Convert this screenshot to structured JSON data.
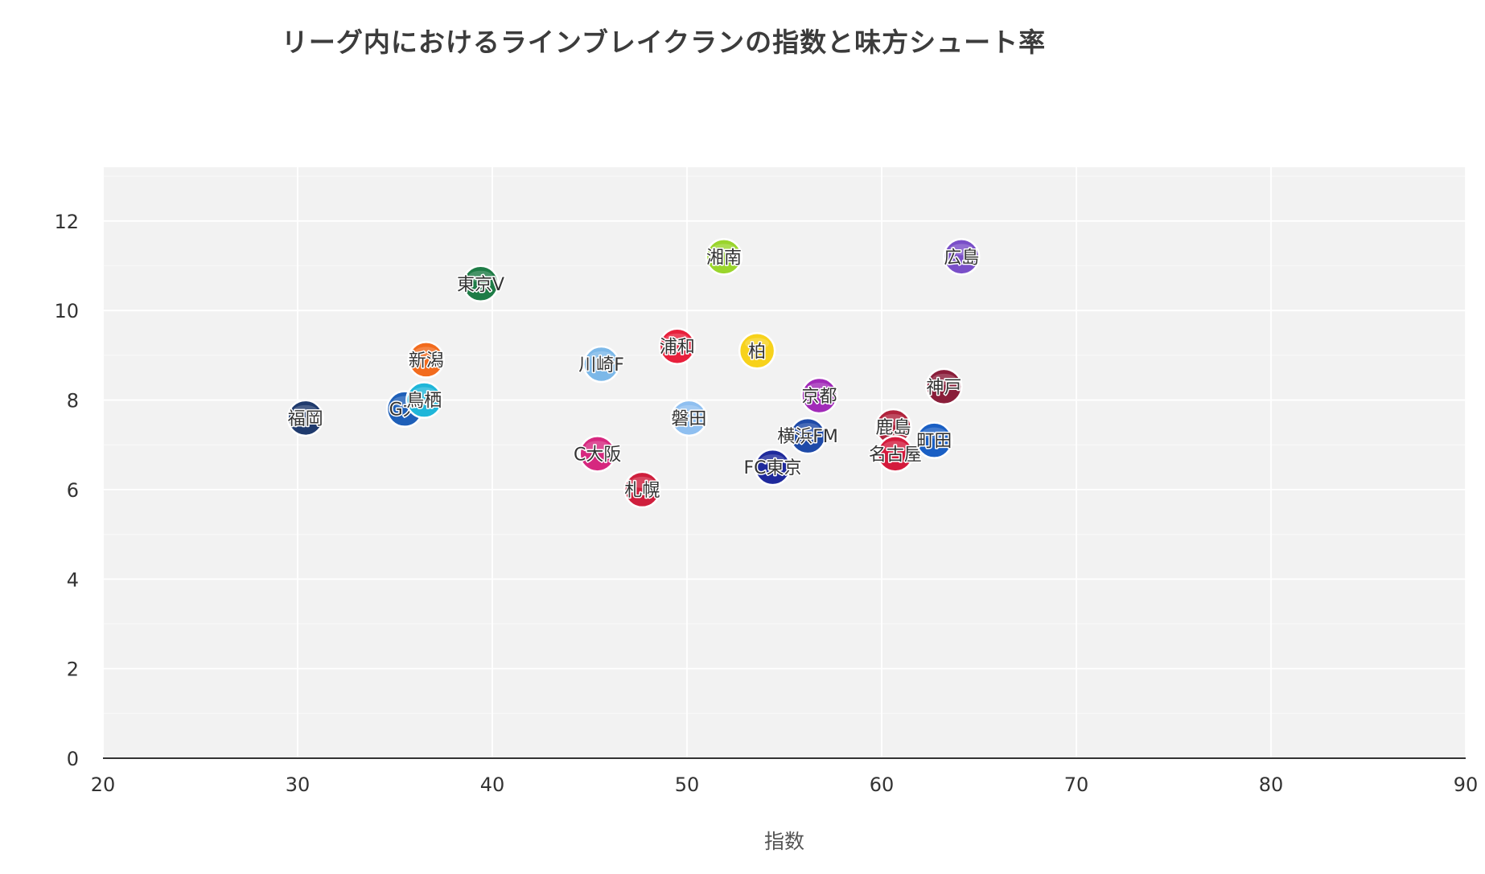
{
  "chart_data": {
    "type": "scatter",
    "title": "リーグ内におけるラインブレイクランの指数と味方シュート率",
    "xlabel": "指数",
    "ylabel": "",
    "xlim": [
      20,
      90
    ],
    "ylim": [
      0,
      13.2
    ],
    "x_ticks": [
      20,
      30,
      40,
      50,
      60,
      70,
      80,
      90
    ],
    "y_ticks": [
      0,
      2,
      4,
      6,
      8,
      10,
      12
    ],
    "grid": true,
    "legend": "none",
    "points": [
      {
        "label": "福岡",
        "x": 30.4,
        "y": 7.6,
        "color": "#1f3a6d"
      },
      {
        "label": "G大",
        "x": 35.5,
        "y": 7.8,
        "color": "#1e5fb8"
      },
      {
        "label": "鳥栖",
        "x": 36.5,
        "y": 8.0,
        "color": "#1fb6d9"
      },
      {
        "label": "新潟",
        "x": 36.6,
        "y": 8.9,
        "color": "#f26b1d"
      },
      {
        "label": "東京V",
        "x": 39.4,
        "y": 10.6,
        "color": "#1e7c46"
      },
      {
        "label": "C大阪",
        "x": 45.4,
        "y": 6.8,
        "color": "#d6287f"
      },
      {
        "label": "川崎F",
        "x": 45.6,
        "y": 8.8,
        "color": "#7cb8e8"
      },
      {
        "label": "札幌",
        "x": 47.7,
        "y": 6.0,
        "color": "#cf1f3d"
      },
      {
        "label": "浦和",
        "x": 49.5,
        "y": 9.2,
        "color": "#e8203c"
      },
      {
        "label": "磐田",
        "x": 50.1,
        "y": 7.6,
        "color": "#8fbff0"
      },
      {
        "label": "湘南",
        "x": 51.9,
        "y": 11.2,
        "color": "#9ad52c"
      },
      {
        "label": "柏",
        "x": 53.6,
        "y": 9.1,
        "color": "#f7d21b"
      },
      {
        "label": "FC東京",
        "x": 54.4,
        "y": 6.5,
        "color": "#1f2a9c"
      },
      {
        "label": "横浜FM",
        "x": 56.2,
        "y": 7.2,
        "color": "#1e4aa8"
      },
      {
        "label": "京都",
        "x": 56.8,
        "y": 8.1,
        "color": "#a12ab8"
      },
      {
        "label": "鹿島",
        "x": 60.6,
        "y": 7.4,
        "color": "#b0233c"
      },
      {
        "label": "名古屋",
        "x": 60.7,
        "y": 6.8,
        "color": "#d41a3c"
      },
      {
        "label": "町田",
        "x": 62.7,
        "y": 7.1,
        "color": "#1a5fc4"
      },
      {
        "label": "神戸",
        "x": 63.2,
        "y": 8.3,
        "color": "#8a1e3a"
      },
      {
        "label": "広島",
        "x": 64.1,
        "y": 11.2,
        "color": "#7a4fc8"
      }
    ]
  },
  "colors": {
    "plot_background": "#f2f2f2",
    "grid_major": "#ffffff",
    "grid_minor": "#f8f8f8",
    "axis_line": "#333333",
    "marker_outline": "#ffffff"
  }
}
